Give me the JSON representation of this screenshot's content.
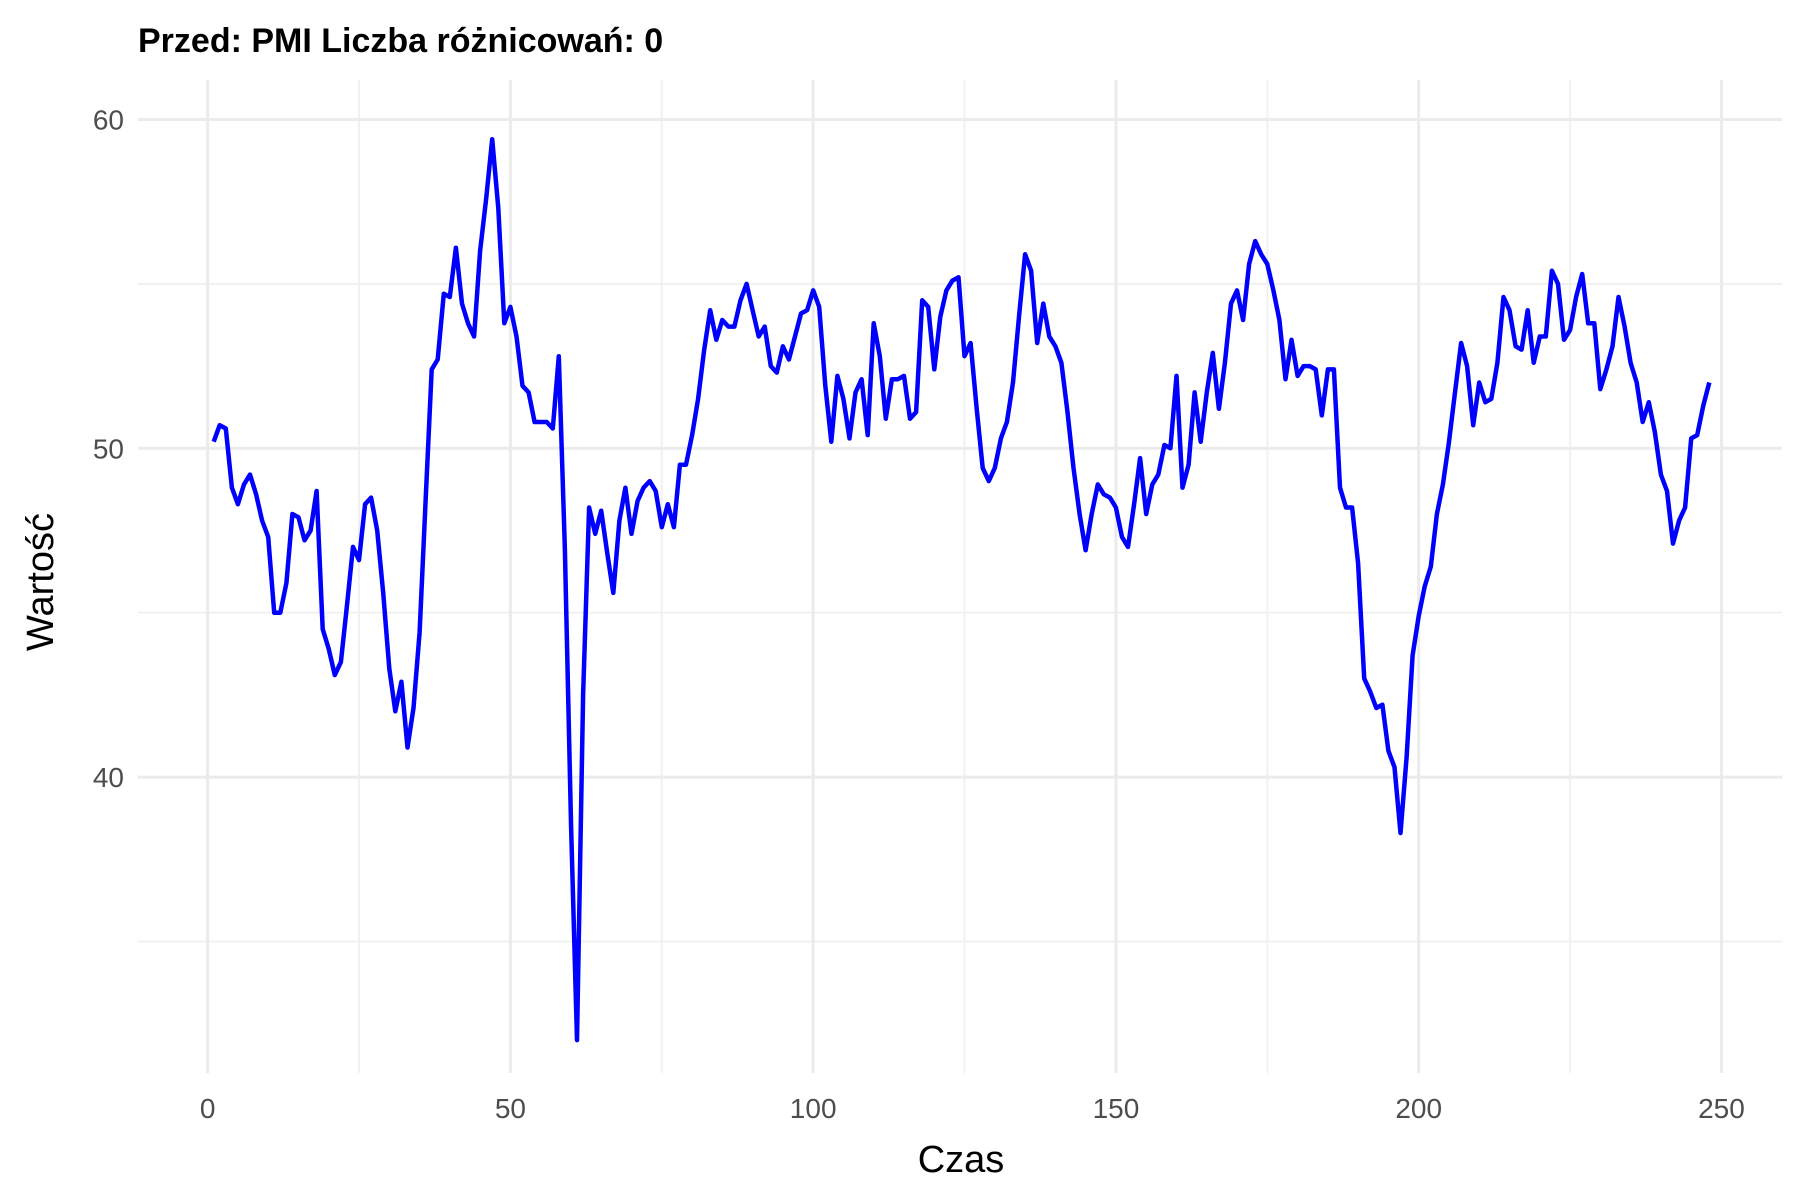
{
  "chart_data": {
    "type": "line",
    "title": "Przed: PMI Liczba różnicowań:  0",
    "xlabel": "Czas",
    "ylabel": "Wartość",
    "xlim": [
      -11.5,
      260
    ],
    "ylim": [
      31,
      61.2
    ],
    "x_ticks": [
      0,
      50,
      100,
      150,
      200,
      250
    ],
    "x_tick_labels": [
      "0",
      "50",
      "100",
      "150",
      "200",
      "250"
    ],
    "x_minor_ticks": [
      25,
      75,
      125,
      175,
      225
    ],
    "y_ticks": [
      40,
      50,
      60
    ],
    "y_tick_labels": [
      "40",
      "50",
      "60"
    ],
    "y_minor_ticks": [
      35,
      45,
      55
    ],
    "grid": true,
    "legend": "none",
    "series": [
      {
        "color": "#0000ff",
        "x": [
          1,
          2,
          3,
          4,
          5,
          6,
          7,
          8,
          9,
          10,
          11,
          12,
          13,
          14,
          15,
          16,
          17,
          18,
          19,
          20,
          21,
          22,
          23,
          24,
          25,
          26,
          27,
          28,
          29,
          30,
          31,
          32,
          33,
          34,
          35,
          36,
          37,
          38,
          39,
          40,
          41,
          42,
          43,
          44,
          45,
          46,
          47,
          48,
          49,
          50,
          51,
          52,
          53,
          54,
          55,
          56,
          57,
          58,
          59,
          60,
          61,
          62,
          63,
          64,
          65,
          66,
          67,
          68,
          69,
          70,
          71,
          72,
          73,
          74,
          75,
          76,
          77,
          78,
          79,
          80,
          81,
          82,
          83,
          84,
          85,
          86,
          87,
          88,
          89,
          90,
          91,
          92,
          93,
          94,
          95,
          96,
          97,
          98,
          99,
          100,
          101,
          102,
          103,
          104,
          105,
          106,
          107,
          108,
          109,
          110,
          111,
          112,
          113,
          114,
          115,
          116,
          117,
          118,
          119,
          120,
          121,
          122,
          123,
          124,
          125,
          126,
          127,
          128,
          129,
          130,
          131,
          132,
          133,
          134,
          135,
          136,
          137,
          138,
          139,
          140,
          141,
          142,
          143,
          144,
          145,
          146,
          147,
          148,
          149,
          150,
          151,
          152,
          153,
          154,
          155,
          156,
          157,
          158,
          159,
          160,
          161,
          162,
          163,
          164,
          165,
          166,
          167,
          168,
          169,
          170,
          171,
          172,
          173,
          174,
          175,
          176,
          177,
          178,
          179,
          180,
          181,
          182,
          183,
          184,
          185,
          186,
          187,
          188,
          189,
          190,
          191,
          192,
          193,
          194,
          195,
          196,
          197,
          198,
          199,
          200,
          201,
          202,
          203,
          204,
          205,
          206,
          207,
          208,
          209,
          210,
          211,
          212,
          213,
          214,
          215,
          216,
          217,
          218,
          219,
          220,
          221,
          222,
          223,
          224,
          225,
          226,
          227,
          228,
          229,
          230,
          231,
          232,
          233,
          234,
          235,
          236,
          237,
          238,
          239,
          240,
          241,
          242,
          243,
          244,
          245,
          246,
          247,
          248
        ],
        "y": [
          50.2,
          50.7,
          50.6,
          48.8,
          48.3,
          48.9,
          49.2,
          48.6,
          47.8,
          47.3,
          45.0,
          45.0,
          45.9,
          48.0,
          47.9,
          47.2,
          47.5,
          48.7,
          44.5,
          43.9,
          43.1,
          43.5,
          45.2,
          47.0,
          46.6,
          48.3,
          48.5,
          47.5,
          45.6,
          43.3,
          42.0,
          42.9,
          40.9,
          42.1,
          44.4,
          48.4,
          52.4,
          52.7,
          54.7,
          54.6,
          56.1,
          54.4,
          53.8,
          53.4,
          56.0,
          57.6,
          59.4,
          57.3,
          53.8,
          54.3,
          53.4,
          51.9,
          51.7,
          50.8,
          50.8,
          50.8,
          50.6,
          52.8,
          46.9,
          38.6,
          32.0,
          42.5,
          48.2,
          47.4,
          48.1,
          46.8,
          45.6,
          47.8,
          48.8,
          47.4,
          48.4,
          48.8,
          49.0,
          48.7,
          47.6,
          48.3,
          47.6,
          49.5,
          49.5,
          50.4,
          51.5,
          53.0,
          54.2,
          53.3,
          53.9,
          53.7,
          53.7,
          54.5,
          55.0,
          54.2,
          53.4,
          53.7,
          52.5,
          52.3,
          53.1,
          52.7,
          53.4,
          54.1,
          54.2,
          54.8,
          54.3,
          51.9,
          50.2,
          52.2,
          51.5,
          50.3,
          51.7,
          52.1,
          50.4,
          53.8,
          52.8,
          50.9,
          52.1,
          52.1,
          52.2,
          50.9,
          51.1,
          54.5,
          54.3,
          52.4,
          54.0,
          54.8,
          55.1,
          55.2,
          52.8,
          53.2,
          51.2,
          49.4,
          49.0,
          49.4,
          50.3,
          50.8,
          52.0,
          54.0,
          55.9,
          55.4,
          53.2,
          54.4,
          53.4,
          53.1,
          52.6,
          51.1,
          49.4,
          48.0,
          46.9,
          48.0,
          48.9,
          48.6,
          48.5,
          48.2,
          47.3,
          47.0,
          48.3,
          49.7,
          48.0,
          48.9,
          49.2,
          50.1,
          50.0,
          52.2,
          48.8,
          49.5,
          51.7,
          50.2,
          51.7,
          52.9,
          51.2,
          52.6,
          54.4,
          54.8,
          53.9,
          55.6,
          56.3,
          55.9,
          55.6,
          54.8,
          53.9,
          52.1,
          53.3,
          52.2,
          52.5,
          52.5,
          52.4,
          51.0,
          52.4,
          52.4,
          48.8,
          48.2,
          48.2,
          46.5,
          43.0,
          42.6,
          42.1,
          42.2,
          40.8,
          40.3,
          38.3,
          40.6,
          43.7,
          44.9,
          45.8,
          46.4,
          48.0,
          48.9,
          50.2,
          51.7,
          53.2,
          52.5,
          50.7,
          52.0,
          51.4,
          51.5,
          52.6,
          54.6,
          54.2,
          53.1,
          53.0,
          54.2,
          52.6,
          53.4,
          53.4,
          55.4,
          55.0,
          53.3,
          53.6,
          54.6,
          55.3,
          53.8,
          53.8,
          51.8,
          52.4,
          53.1,
          54.6,
          53.7,
          52.6,
          52.0,
          50.8,
          51.4,
          50.5,
          49.2,
          48.7,
          47.1,
          47.8,
          48.2,
          50.3,
          50.4,
          51.3,
          52.0
        ]
      }
    ]
  }
}
